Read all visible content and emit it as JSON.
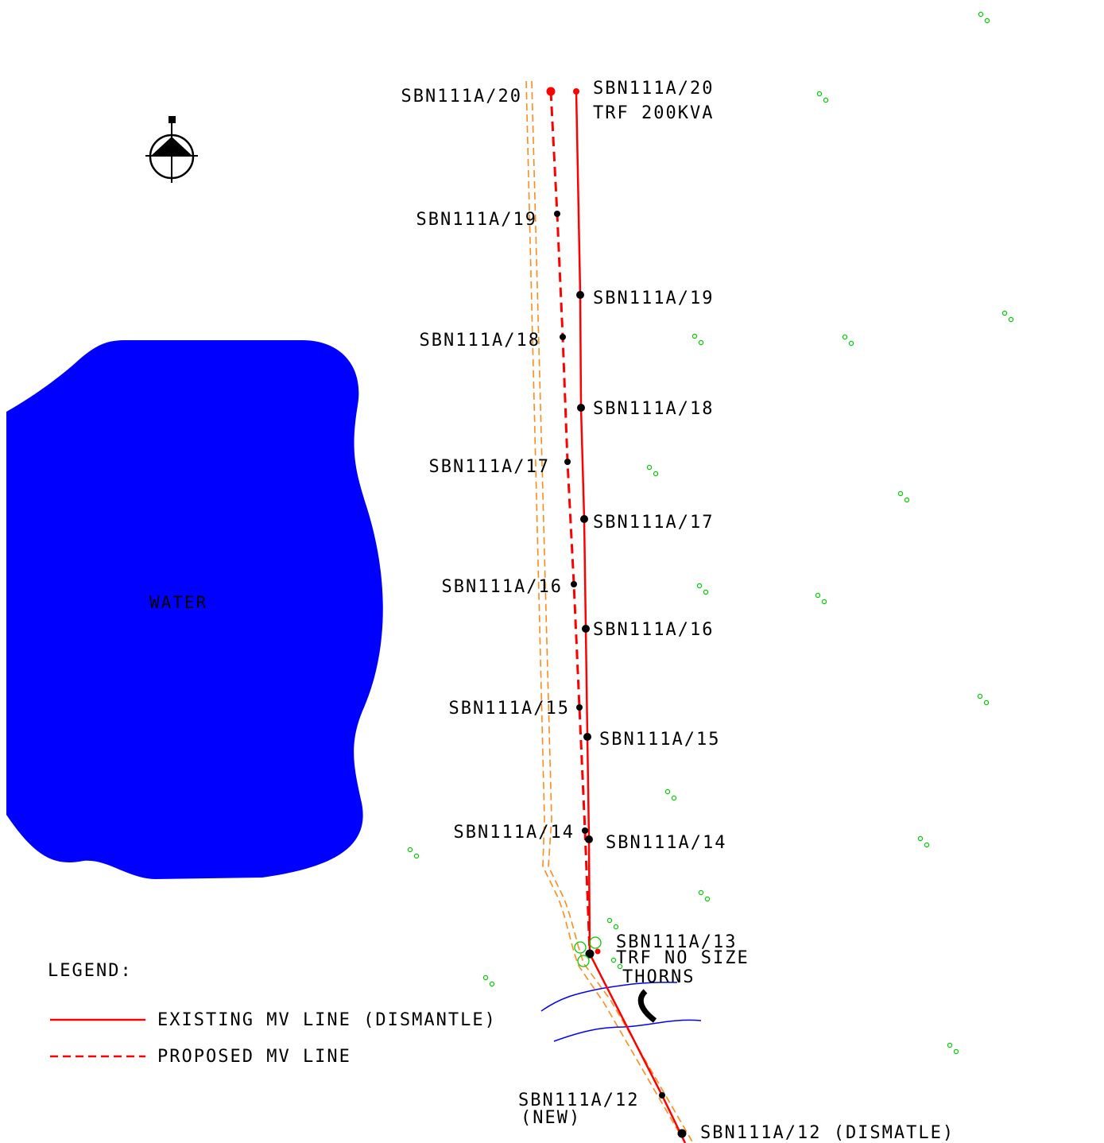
{
  "colors": {
    "existing_line": "#ff0000",
    "proposed_line": "#ff0000",
    "road": "#ff8c1a",
    "water": "#0000ff",
    "river": "#0000ff",
    "tree": "#00cc00",
    "pole": "#000000"
  },
  "water_label": "WATER",
  "proposed_poles": [
    "SBN111A/20",
    "SBN111A/19",
    "SBN111A/18",
    "SBN111A/17",
    "SBN111A/16",
    "SBN111A/15",
    "SBN111A/14"
  ],
  "existing_poles": [
    "SBN111A/20",
    "SBN111A/19",
    "SBN111A/18",
    "SBN111A/17",
    "SBN111A/16",
    "SBN111A/15",
    "SBN111A/14"
  ],
  "transformer_label": "TRF 200KVA",
  "pole13": {
    "name": "SBN111A/13",
    "trf": "TRF NO SIZE",
    "note": "THORNS"
  },
  "pole12_new": {
    "name": "SBN111A/12",
    "note": "(NEW)"
  },
  "pole12_dismantle": "SBN111A/12 (DISMATLE)",
  "legend": {
    "title": "LEGEND:",
    "existing": "EXISTING MV LINE (DISMANTLE)",
    "proposed": "PROPOSED MV LINE"
  },
  "icons": {
    "north_arrow": "north-arrow-icon",
    "tree": "tree-icon"
  }
}
